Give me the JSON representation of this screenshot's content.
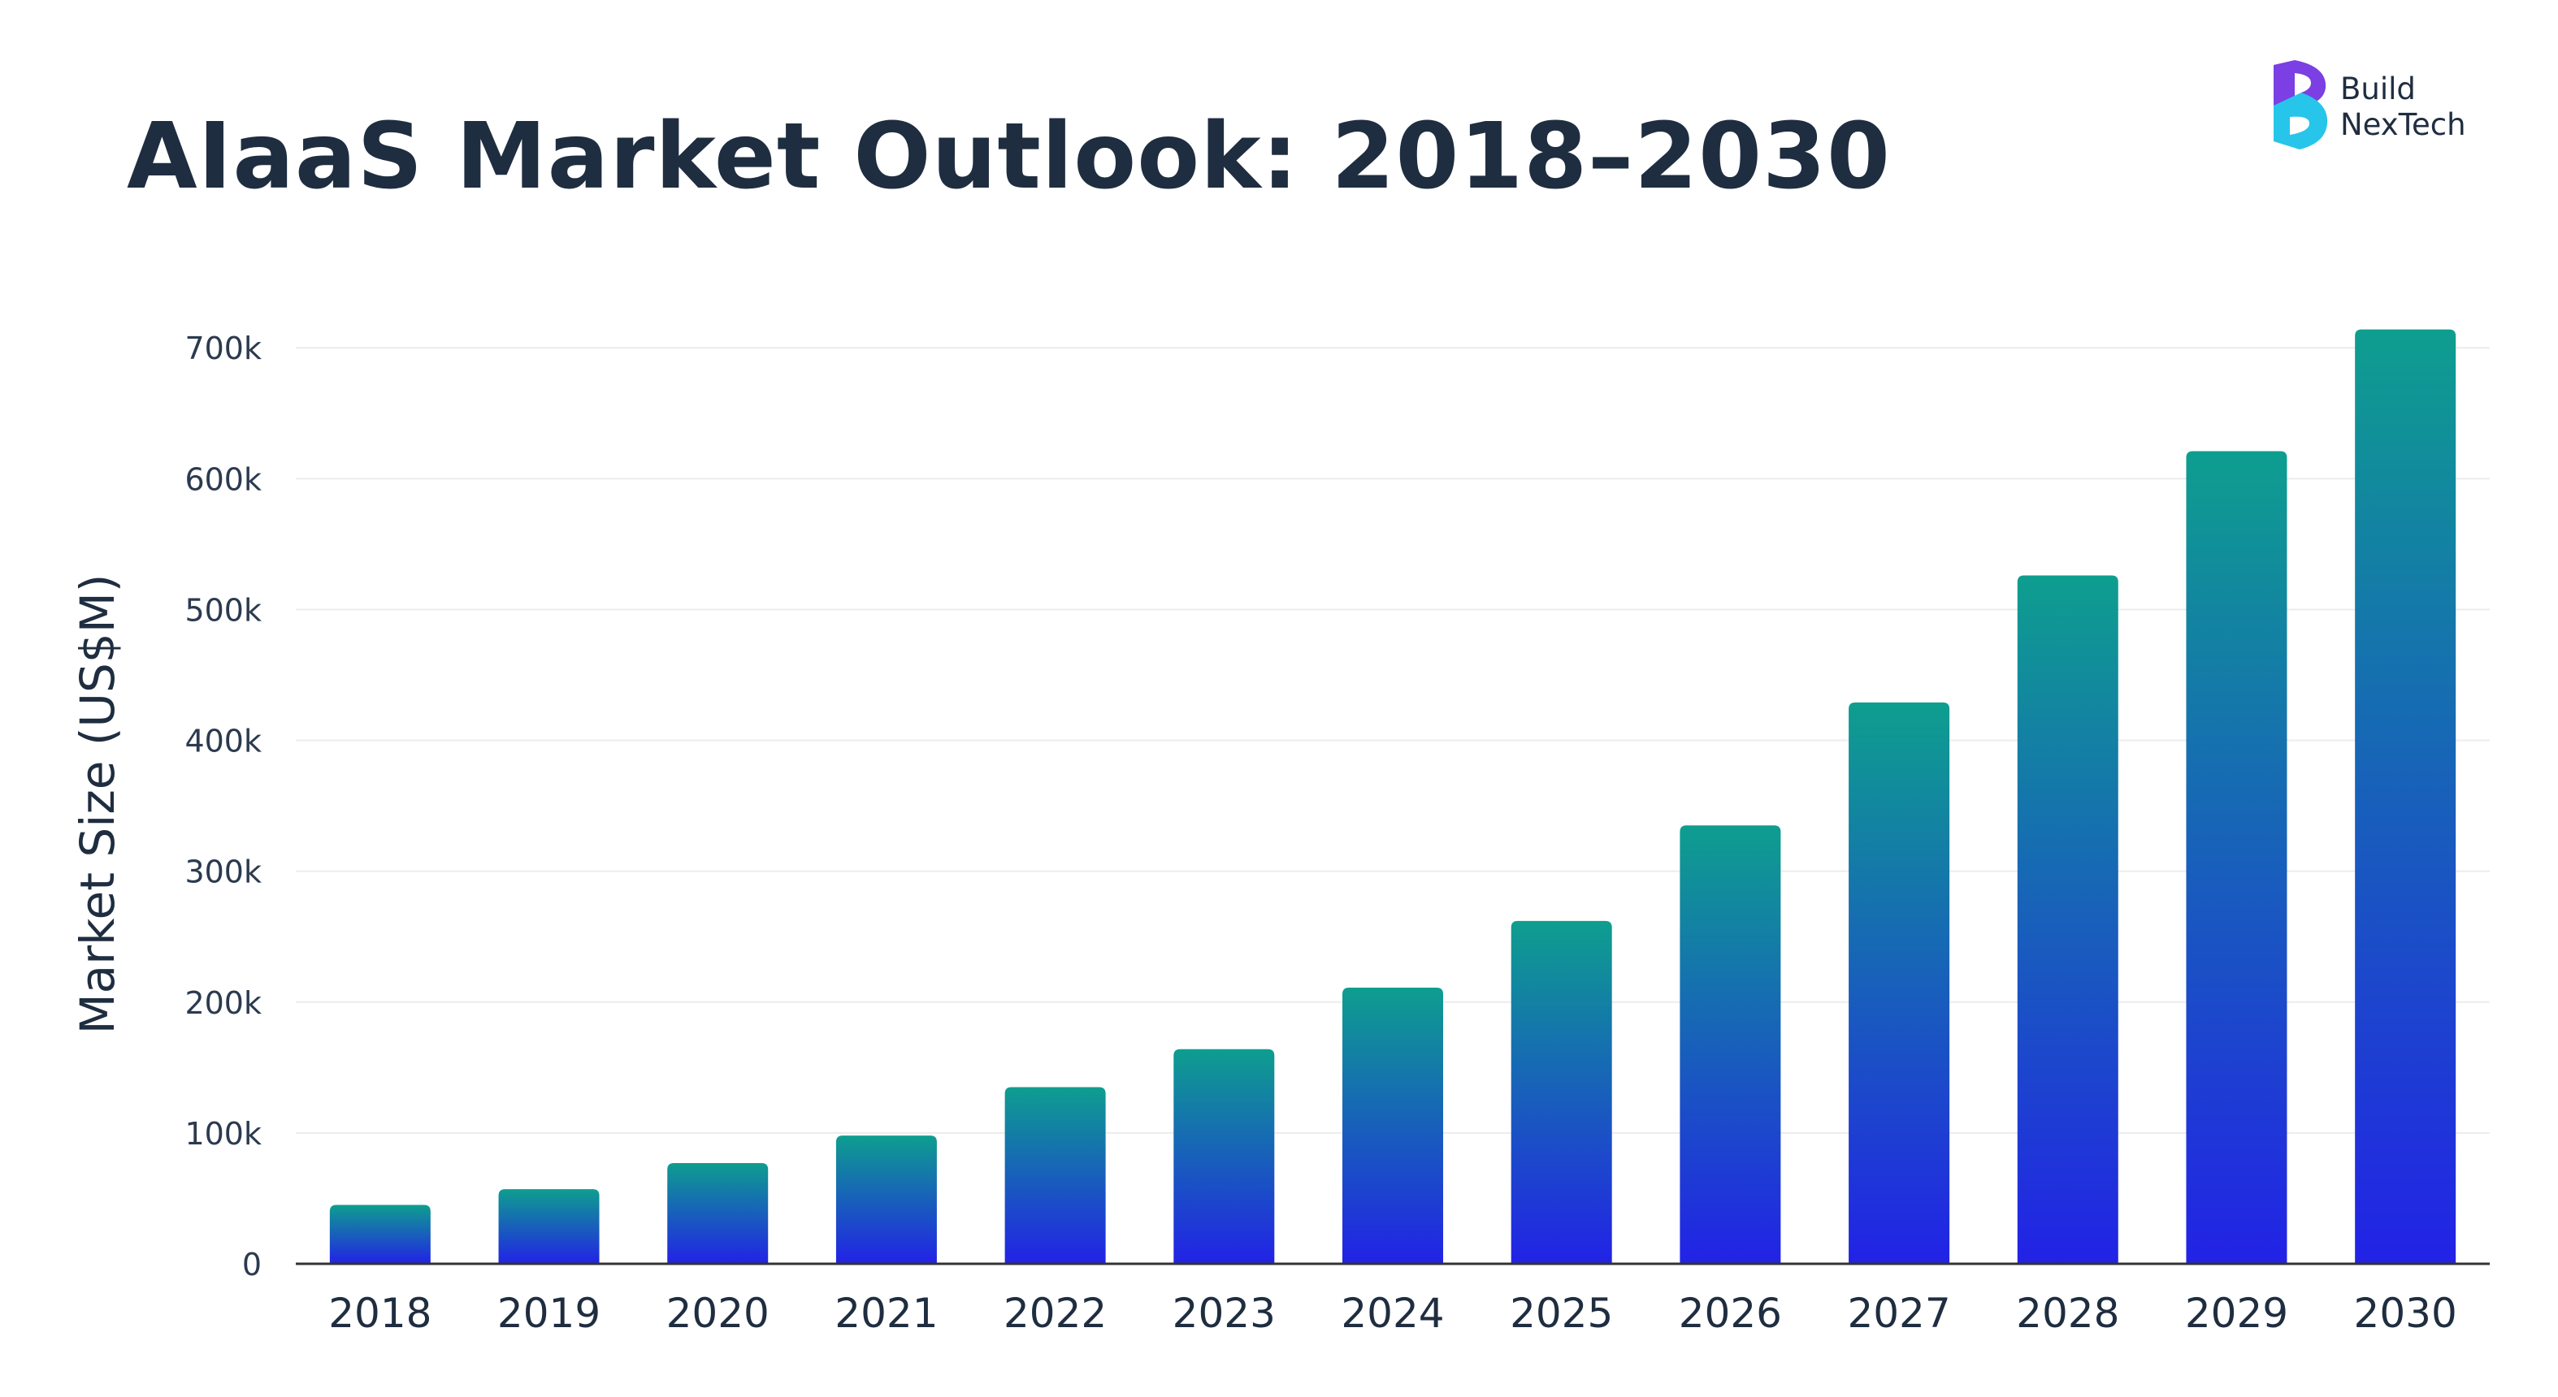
{
  "title": "AIaaS Market Outlook: 2018–2030",
  "logo": {
    "line1": "Build",
    "line2": "NexTech",
    "icon": "b-logo-icon"
  },
  "colors": {
    "bar_top": "#0e9e8f",
    "bar_bottom": "#2222e6",
    "title": "#1f2d40",
    "grid": "#ececec",
    "axis": "#333333",
    "logo_purple": "#7b3fe4",
    "logo_cyan": "#27c5ea"
  },
  "chart_data": {
    "type": "bar",
    "title": "AIaaS Market Outlook: 2018–2030",
    "xlabel": "",
    "ylabel": "Market Size (US$M)",
    "categories": [
      "2018",
      "2019",
      "2020",
      "2021",
      "2022",
      "2023",
      "2024",
      "2025",
      "2026",
      "2027",
      "2028",
      "2029",
      "2030"
    ],
    "values": [
      45000,
      57000,
      77000,
      98000,
      135000,
      164000,
      211000,
      262000,
      335000,
      429000,
      526000,
      621000,
      714000
    ],
    "yticks": [
      0,
      100000,
      200000,
      300000,
      400000,
      500000,
      600000,
      700000
    ],
    "ytick_labels": [
      "0",
      "100k",
      "200k",
      "300k",
      "400k",
      "500k",
      "600k",
      "700k"
    ],
    "ylim": [
      0,
      720000
    ],
    "grid": true,
    "legend": "none"
  }
}
